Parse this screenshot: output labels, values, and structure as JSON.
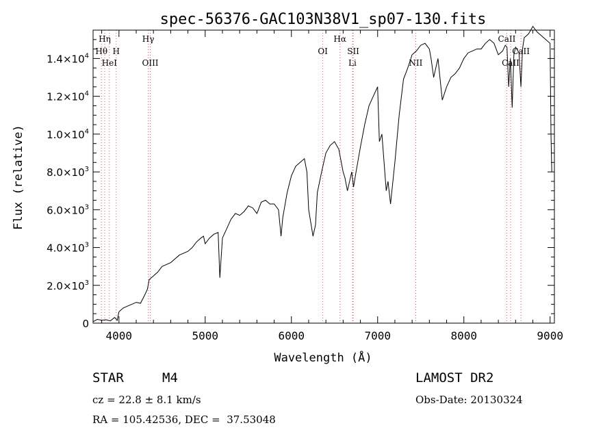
{
  "chart_data": {
    "type": "line",
    "title": "spec-56376-GAC103N38V1_sp07-130.fits",
    "xlabel": "Wavelength (Å)",
    "ylabel": "Flux (relative)",
    "xlim": [
      3700,
      9050
    ],
    "ylim": [
      0,
      15500
    ],
    "grid": false,
    "x_ticks": [
      {
        "value": 4000,
        "label": "4000"
      },
      {
        "value": 5000,
        "label": "5000"
      },
      {
        "value": 6000,
        "label": "6000"
      },
      {
        "value": 7000,
        "label": "7000"
      },
      {
        "value": 8000,
        "label": "8000"
      },
      {
        "value": 9000,
        "label": "9000"
      }
    ],
    "y_ticks": [
      {
        "value": 0,
        "label": "0"
      },
      {
        "value": 2000,
        "mant": "2.0",
        "exp": "3"
      },
      {
        "value": 4000,
        "mant": "4.0",
        "exp": "3"
      },
      {
        "value": 6000,
        "mant": "6.0",
        "exp": "3"
      },
      {
        "value": 8000,
        "mant": "8.0",
        "exp": "3"
      },
      {
        "value": 10000,
        "mant": "1.0",
        "exp": "4"
      },
      {
        "value": 12000,
        "mant": "1.2",
        "exp": "4"
      },
      {
        "value": 14000,
        "mant": "1.4",
        "exp": "4"
      }
    ],
    "lines": [
      {
        "name": "Hη",
        "wavelength": 3835,
        "row": 0
      },
      {
        "name": "Hθ",
        "wavelength": 3797,
        "row": 1
      },
      {
        "name": "H",
        "wavelength": 3968,
        "row": 1
      },
      {
        "name": "HeI",
        "wavelength": 3889,
        "row": 2
      },
      {
        "name": "Hγ",
        "wavelength": 4340,
        "row": 0
      },
      {
        "name": "OIII",
        "wavelength": 4363,
        "row": 2
      },
      {
        "name": "OI",
        "wavelength": 6364,
        "row": 1
      },
      {
        "name": "Hα",
        "wavelength": 6563,
        "row": 0
      },
      {
        "name": "SII",
        "wavelength": 6717,
        "row": 1
      },
      {
        "name": "Li",
        "wavelength": 6708,
        "row": 2
      },
      {
        "name": "NII",
        "wavelength": 7442,
        "row": 2
      },
      {
        "name": "CaII",
        "wavelength": 8498,
        "row": 0
      },
      {
        "name": "CaII",
        "wavelength": 8662,
        "row": 1
      },
      {
        "name": "CaII",
        "wavelength": 8542,
        "row": 2
      }
    ],
    "series": [
      {
        "x": [
          3700,
          3750,
          3800,
          3850,
          3900,
          3950,
          3980,
          4000,
          4050,
          4100,
          4150,
          4200,
          4250,
          4300,
          4330,
          4350,
          4400,
          4450,
          4500,
          4550,
          4600,
          4650,
          4700,
          4750,
          4800,
          4850,
          4900,
          4950,
          4980,
          5000,
          5050,
          5100,
          5150,
          5170,
          5200,
          5250,
          5300,
          5350,
          5400,
          5450,
          5500,
          5550,
          5600,
          5650,
          5700,
          5750,
          5800,
          5850,
          5880,
          5900,
          5950,
          6000,
          6050,
          6100,
          6150,
          6180,
          6200,
          6250,
          6280,
          6300,
          6350,
          6400,
          6450,
          6500,
          6550,
          6600,
          6620,
          6650,
          6700,
          6720,
          6750,
          6800,
          6850,
          6900,
          6950,
          7000,
          7020,
          7050,
          7100,
          7120,
          7150,
          7200,
          7250,
          7300,
          7350,
          7400,
          7450,
          7500,
          7550,
          7600,
          7620,
          7650,
          7700,
          7750,
          7800,
          7850,
          7900,
          7950,
          8000,
          8050,
          8100,
          8150,
          8200,
          8250,
          8300,
          8350,
          8400,
          8450,
          8480,
          8500,
          8520,
          8540,
          8560,
          8580,
          8600,
          8640,
          8662,
          8680,
          8700,
          8750,
          8800,
          8850,
          8900,
          8950,
          9000,
          9010,
          9020
        ],
        "y": [
          80,
          200,
          150,
          180,
          120,
          300,
          150,
          600,
          800,
          900,
          1000,
          1100,
          1050,
          1500,
          1800,
          2300,
          2500,
          2700,
          3000,
          3100,
          3200,
          3400,
          3600,
          3700,
          3800,
          4000,
          4300,
          4500,
          4600,
          4200,
          4500,
          4700,
          4800,
          2400,
          4500,
          5000,
          5500,
          5800,
          5700,
          5900,
          6200,
          6100,
          5800,
          6400,
          6500,
          6300,
          6300,
          6000,
          4600,
          5600,
          6900,
          7800,
          8300,
          8500,
          8700,
          8000,
          6000,
          4600,
          5200,
          6900,
          8000,
          9000,
          9400,
          9600,
          9200,
          8000,
          7700,
          7000,
          8000,
          7200,
          8000,
          9300,
          10500,
          11500,
          12000,
          12500,
          9600,
          10000,
          7000,
          7500,
          6300,
          8500,
          11000,
          12900,
          13500,
          14200,
          14400,
          14700,
          14800,
          14500,
          14000,
          13000,
          14000,
          11800,
          12500,
          13000,
          13200,
          13500,
          14000,
          14300,
          14400,
          14500,
          14500,
          14800,
          15000,
          14800,
          14200,
          14400,
          14700,
          14600,
          12500,
          14000,
          11400,
          14200,
          14600,
          14300,
          12500,
          14500,
          15100,
          15300,
          15700,
          15400,
          15200,
          15000,
          14800,
          10000,
          8000
        ]
      }
    ]
  },
  "info": {
    "class": "STAR",
    "subclass": "M4",
    "survey": "LAMOST DR2",
    "cz": "cz = 22.8 ± 8.1 km/s",
    "obs_date": "Obs-Date: 20130324",
    "coords": "RA = 105.42536, DEC =  37.53048"
  }
}
